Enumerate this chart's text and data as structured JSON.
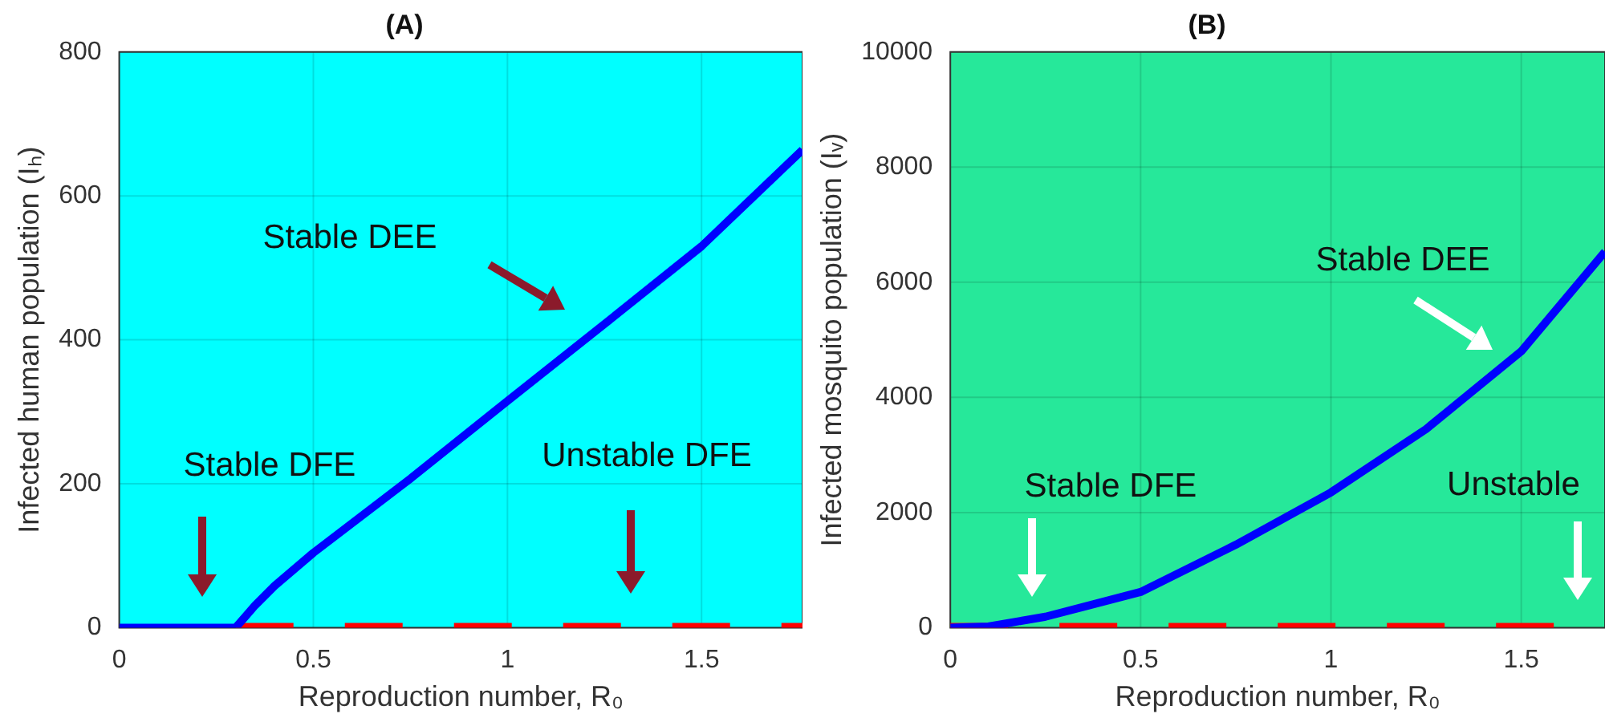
{
  "chart_data": [
    {
      "type": "line",
      "title": "(A)",
      "xlabel": "Reproduction number, R₀",
      "ylabel": "Infected human population (Iₕ)",
      "xlim": [
        0,
        1.76
      ],
      "xticks": [
        0,
        0.5,
        1,
        1.5
      ],
      "ylim": [
        0,
        800
      ],
      "yticks": [
        0,
        200,
        400,
        600,
        800
      ],
      "grid": true,
      "legend": false,
      "marker": "none",
      "series": [
        {
          "color": "#0000ff",
          "x": [
            0,
            0.3,
            0.35,
            0.4,
            0.5,
            0.75,
            1,
            1.25,
            1.5,
            1.76
          ],
          "values": [
            0,
            0,
            31,
            58,
            104,
            207,
            315,
            422,
            530,
            664
          ],
          "line_style": "solid"
        },
        {
          "color": "#ff0000",
          "x": [
            0.3,
            1.76
          ],
          "values": [
            0,
            0
          ],
          "line_style": "dashed"
        }
      ],
      "annotations": [
        "Stable DEE",
        "Stable DFE",
        "Unstable DFE"
      ]
    },
    {
      "type": "line",
      "title": "(B)",
      "xlabel": "Reproduction number, R₀",
      "ylabel": "Infected mosquito population (Iᵥ)",
      "xlim": [
        0,
        1.72
      ],
      "xticks": [
        0,
        0.5,
        1,
        1.5
      ],
      "ylim": [
        0,
        10000
      ],
      "yticks": [
        0,
        2000,
        4000,
        6000,
        8000,
        10000
      ],
      "grid": true,
      "legend": false,
      "marker": "none",
      "series": [
        {
          "color": "#0000ff",
          "x": [
            0,
            0.1,
            0.25,
            0.5,
            0.75,
            1,
            1.25,
            1.5,
            1.72
          ],
          "values": [
            0,
            20,
            190,
            620,
            1440,
            2350,
            3450,
            4800,
            6530
          ],
          "line_style": "solid"
        },
        {
          "color": "#ff0000",
          "x": [
            0,
            1.72
          ],
          "values": [
            0,
            0
          ],
          "line_style": "dashed"
        }
      ],
      "annotations": [
        "Stable DEE",
        "Stable DFE",
        "Unstable"
      ]
    }
  ]
}
